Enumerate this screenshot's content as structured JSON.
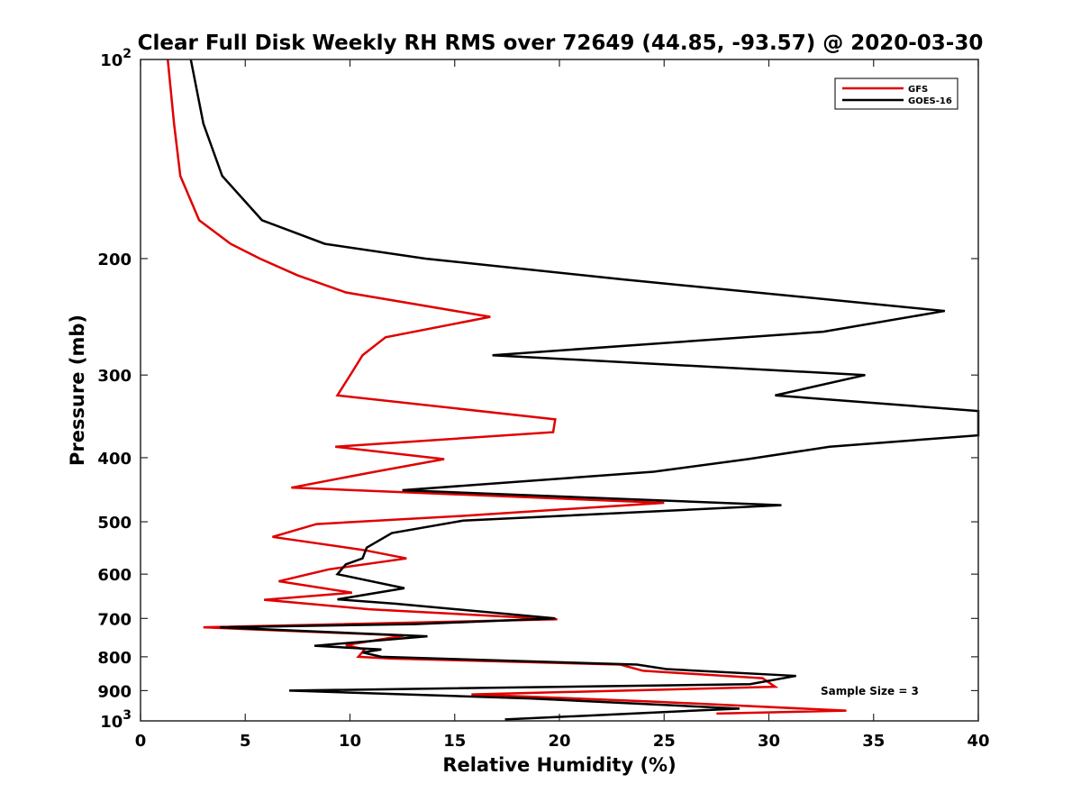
{
  "chart_data": {
    "type": "line",
    "title": "Clear Full Disk Weekly RH RMS over 72649 (44.85, -93.57) @ 2020-03-30",
    "xlabel": "Relative Humidity (%)",
    "ylabel": "Pressure (mb)",
    "xlim": [
      0,
      40
    ],
    "ylim": [
      100,
      1000
    ],
    "yscale": "log",
    "y_reversed": true,
    "xticks": [
      0,
      5,
      10,
      15,
      20,
      25,
      30,
      35,
      40
    ],
    "yticks": [
      200,
      300,
      400,
      500,
      600,
      700,
      800,
      900
    ],
    "ytick_power_labels": [
      {
        "base": "10",
        "exp": "2",
        "value": 100
      },
      {
        "base": "10",
        "exp": "3",
        "value": 1000
      }
    ],
    "legend_position": "top-right",
    "annotation": "Sample Size = 3",
    "series": [
      {
        "name": "GFS",
        "color": "#e00000",
        "points": [
          [
            1.3,
            100
          ],
          [
            1.6,
            125
          ],
          [
            1.9,
            150
          ],
          [
            2.8,
            175
          ],
          [
            4.3,
            190
          ],
          [
            5.7,
            200
          ],
          [
            7.5,
            212
          ],
          [
            9.8,
            225
          ],
          [
            16.7,
            245
          ],
          [
            11.7,
            263
          ],
          [
            10.6,
            280
          ],
          [
            10.1,
            297
          ],
          [
            9.4,
            322
          ],
          [
            19.8,
            350
          ],
          [
            19.7,
            366
          ],
          [
            9.3,
            385
          ],
          [
            14.5,
            402
          ],
          [
            11.2,
            420
          ],
          [
            7.2,
            444
          ],
          [
            25.0,
            468
          ],
          [
            15.3,
            490
          ],
          [
            8.4,
            504
          ],
          [
            6.3,
            527
          ],
          [
            10.7,
            552
          ],
          [
            12.7,
            568
          ],
          [
            9.0,
            590
          ],
          [
            6.6,
            615
          ],
          [
            10.1,
            640
          ],
          [
            5.9,
            656
          ],
          [
            10.9,
            678
          ],
          [
            19.9,
            702
          ],
          [
            3.0,
            722
          ],
          [
            12.6,
            743
          ],
          [
            9.8,
            768
          ],
          [
            10.7,
            780
          ],
          [
            10.4,
            800
          ],
          [
            12.0,
            805
          ],
          [
            22.9,
            822
          ],
          [
            24.0,
            840
          ],
          [
            29.7,
            862
          ],
          [
            30.3,
            888
          ],
          [
            15.8,
            912
          ],
          [
            24.5,
            935
          ],
          [
            33.7,
            965
          ],
          [
            27.5,
            975
          ]
        ]
      },
      {
        "name": "GOES-16",
        "color": "#000000",
        "points": [
          [
            2.4,
            100
          ],
          [
            3.0,
            125
          ],
          [
            3.9,
            150
          ],
          [
            5.8,
            175
          ],
          [
            8.8,
            190
          ],
          [
            13.6,
            200
          ],
          [
            23.0,
            215
          ],
          [
            38.4,
            240
          ],
          [
            32.6,
            258
          ],
          [
            16.8,
            280
          ],
          [
            34.6,
            300
          ],
          [
            30.3,
            322
          ],
          [
            40.0,
            340
          ],
          [
            40.0,
            370
          ],
          [
            32.9,
            385
          ],
          [
            29.0,
            402
          ],
          [
            24.5,
            420
          ],
          [
            12.5,
            448
          ],
          [
            30.6,
            472
          ],
          [
            15.4,
            498
          ],
          [
            12.0,
            520
          ],
          [
            10.8,
            547
          ],
          [
            10.6,
            568
          ],
          [
            9.8,
            580
          ],
          [
            9.4,
            600
          ],
          [
            12.6,
            630
          ],
          [
            9.4,
            655
          ],
          [
            12.2,
            665
          ],
          [
            19.8,
            700
          ],
          [
            13.1,
            714
          ],
          [
            3.8,
            722
          ],
          [
            13.7,
            745
          ],
          [
            8.3,
            770
          ],
          [
            11.5,
            780
          ],
          [
            10.6,
            788
          ],
          [
            11.5,
            800
          ],
          [
            23.7,
            822
          ],
          [
            25.1,
            835
          ],
          [
            31.3,
            855
          ],
          [
            29.1,
            880
          ],
          [
            7.1,
            900
          ],
          [
            18.6,
            925
          ],
          [
            28.6,
            958
          ],
          [
            17.4,
            995
          ]
        ]
      }
    ]
  }
}
